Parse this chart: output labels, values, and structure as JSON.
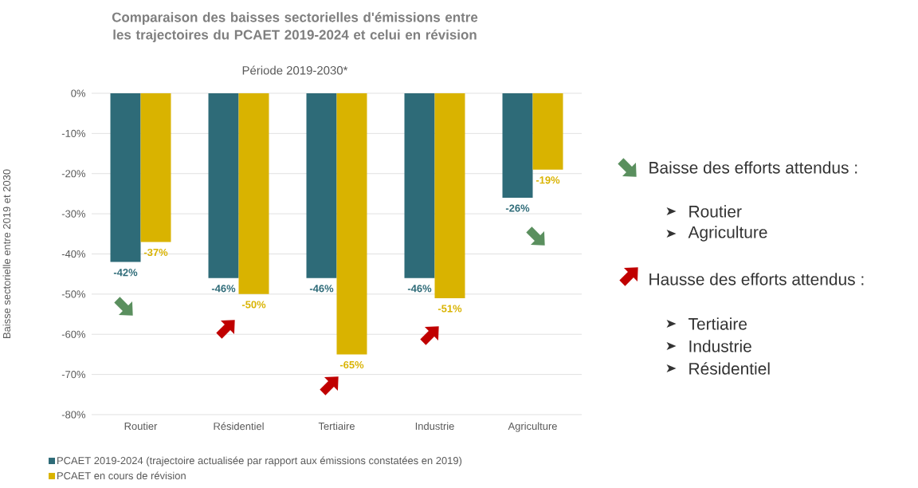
{
  "chart_data": {
    "type": "bar",
    "title": "Comparaison des baisses sectorielles d'émissions entre les trajectoires du PCAET 2019-2024 et celui en révision",
    "subtitle": "Période 2019-2030*",
    "ylabel": "Baisse sectorielle entre 2019 et 2030",
    "categories": [
      "Routier",
      "Résidentiel",
      "Tertiaire",
      "Industrie",
      "Agriculture"
    ],
    "series": [
      {
        "name": "PCAET 2019-2024 (trajectoire actualisée par rapport aux émissions constatées en 2019)",
        "color": "#2e6b78",
        "values": [
          -42,
          -46,
          -46,
          -46,
          -26
        ],
        "value_labels": [
          "-42%",
          "-46%",
          "-46%",
          "-46%",
          "-26%"
        ]
      },
      {
        "name": "PCAET en cours de révision",
        "color": "#d9b300",
        "values": [
          -37,
          -50,
          -65,
          -51,
          -19
        ],
        "value_labels": [
          "-37%",
          "-50%",
          "-65%",
          "-51%",
          "-19%"
        ]
      }
    ],
    "ylim": [
      -80,
      0
    ],
    "yticks": [
      {
        "value": 0,
        "label": "0%"
      },
      {
        "value": -10,
        "label": "-10%"
      },
      {
        "value": -20,
        "label": "-20%"
      },
      {
        "value": -30,
        "label": "-30%"
      },
      {
        "value": -40,
        "label": "-40%"
      },
      {
        "value": -50,
        "label": "-50%"
      },
      {
        "value": -60,
        "label": "-60%"
      },
      {
        "value": -70,
        "label": "-70%"
      },
      {
        "value": -80,
        "label": "-80%"
      }
    ],
    "grid": "y",
    "legend": "bottom",
    "annotations": [
      "Baisse des efforts attendus :",
      "Routier",
      "Agriculture",
      "Hausse des efforts attendus :",
      "Tertiaire",
      "Industrie",
      "Résidentiel"
    ]
  }
}
